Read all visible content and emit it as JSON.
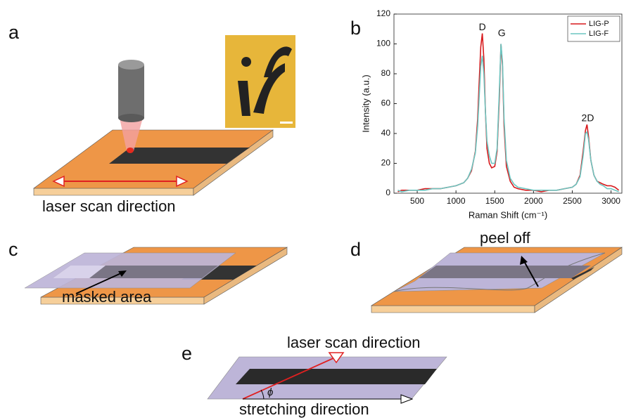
{
  "panels": {
    "a": {
      "label": "a",
      "caption": "laser scan direction"
    },
    "b": {
      "label": "b"
    },
    "c": {
      "label": "c",
      "caption": "masked area"
    },
    "d": {
      "label": "d",
      "caption": "peel off"
    },
    "e": {
      "label": "e",
      "caption_top": "laser scan direction",
      "caption_bottom": "stretching direction",
      "angle": "ϕ"
    }
  },
  "chart_data": {
    "type": "line",
    "xlabel": "Raman Shift (cm⁻¹)",
    "ylabel": "Intensity (a.u.)",
    "xlim": [
      200,
      3140
    ],
    "ylim": [
      0,
      120
    ],
    "xticks": [
      500,
      1000,
      1500,
      2000,
      2500,
      3000
    ],
    "yticks": [
      0,
      20,
      40,
      60,
      80,
      100,
      120
    ],
    "legend": "upper right",
    "annotations": [
      {
        "text": "D",
        "x": 1340,
        "y": 111
      },
      {
        "text": "G",
        "x": 1590,
        "y": 107
      },
      {
        "text": "2D",
        "x": 2700,
        "y": 50
      }
    ],
    "x": [
      250,
      300,
      400,
      500,
      600,
      700,
      800,
      900,
      1000,
      1100,
      1150,
      1200,
      1250,
      1280,
      1300,
      1320,
      1340,
      1360,
      1380,
      1400,
      1430,
      1460,
      1500,
      1530,
      1560,
      1580,
      1600,
      1620,
      1650,
      1700,
      1750,
      1800,
      1900,
      2000,
      2100,
      2200,
      2300,
      2400,
      2500,
      2550,
      2600,
      2640,
      2670,
      2690,
      2710,
      2740,
      2780,
      2820,
      2860,
      2900,
      2950,
      3000,
      3050,
      3100
    ],
    "series": [
      {
        "name": "LIG-P",
        "color": "#d7191c",
        "values": [
          1,
          2,
          2,
          2,
          3,
          3,
          3,
          4,
          5,
          7,
          10,
          15,
          28,
          50,
          75,
          98,
          107,
          90,
          55,
          30,
          20,
          17,
          18,
          28,
          65,
          100,
          85,
          45,
          18,
          8,
          4,
          3,
          2,
          2,
          1,
          2,
          2,
          3,
          4,
          6,
          12,
          28,
          42,
          46,
          38,
          22,
          12,
          8,
          7,
          6,
          5,
          5,
          4,
          2
        ]
      },
      {
        "name": "LIG-F",
        "color": "#6cc5c0",
        "values": [
          2,
          1,
          2,
          2,
          2,
          3,
          3,
          4,
          5,
          7,
          10,
          16,
          27,
          45,
          65,
          85,
          92,
          80,
          55,
          35,
          25,
          20,
          20,
          30,
          70,
          100,
          88,
          50,
          22,
          10,
          6,
          4,
          3,
          2,
          2,
          2,
          2,
          3,
          4,
          6,
          11,
          25,
          40,
          41,
          36,
          22,
          12,
          8,
          6,
          5,
          3,
          3,
          2,
          1
        ]
      }
    ]
  }
}
